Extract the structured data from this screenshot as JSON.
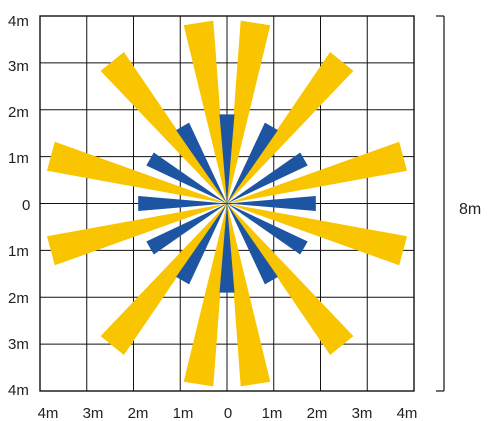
{
  "y_axis_labels": [
    "4m",
    "3m",
    "2m",
    "1m",
    "0",
    "1m",
    "2m",
    "3m",
    "4m"
  ],
  "x_axis_labels": [
    "4m",
    "3m",
    "2m",
    "1m",
    "0",
    "1m",
    "2m",
    "3m",
    "4m"
  ],
  "dimension_label": "8m",
  "colors": {
    "long_beam": "#f9c400",
    "short_beam": "#1e55a3",
    "grid": "#111111"
  },
  "beams": {
    "long_angles_deg": [
      -81,
      -99,
      -51,
      -129,
      -15,
      -165,
      15,
      165,
      51,
      129,
      81,
      99
    ],
    "long_length_m": 3.9,
    "short_angles_deg": [
      -90,
      -60,
      -120,
      -30,
      -150,
      0,
      180,
      30,
      150,
      60,
      120,
      90
    ],
    "short_length_m": 1.9
  }
}
